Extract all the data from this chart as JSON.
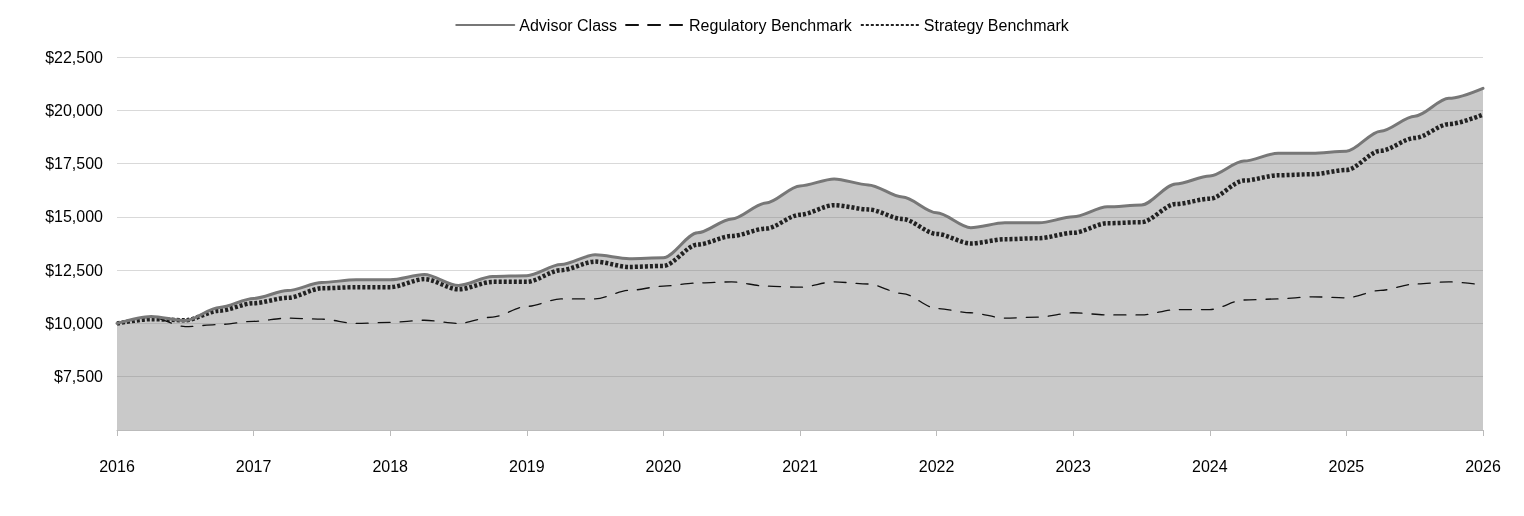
{
  "chart_data": {
    "type": "line",
    "x": [
      2016,
      2016.25,
      2016.5,
      2016.75,
      2017,
      2017.25,
      2017.5,
      2017.75,
      2018,
      2018.25,
      2018.5,
      2018.75,
      2019,
      2019.25,
      2019.5,
      2019.75,
      2020,
      2020.25,
      2020.5,
      2020.75,
      2021,
      2021.25,
      2021.5,
      2021.75,
      2022,
      2022.25,
      2022.5,
      2022.75,
      2023,
      2023.25,
      2023.5,
      2023.75,
      2024,
      2024.25,
      2024.5,
      2024.75,
      2025,
      2025.25,
      2025.5,
      2025.75,
      2026
    ],
    "series": [
      {
        "name": "Advisor Class",
        "type": "area",
        "color": "#777777",
        "line_style": "solid",
        "values": [
          10000,
          10330,
          10140,
          10750,
          11170,
          11540,
          11920,
          12050,
          12050,
          12290,
          11780,
          12200,
          12240,
          12760,
          13220,
          13040,
          13080,
          14250,
          14900,
          15650,
          16450,
          16780,
          16500,
          15930,
          15190,
          14490,
          14720,
          14720,
          15000,
          15470,
          15560,
          16540,
          16920,
          17620,
          17990,
          17990,
          18080,
          19020,
          19720,
          20560,
          21030
        ]
      },
      {
        "name": "Regulatory Benchmark",
        "color": "#111111",
        "line_style": "dashed",
        "values": [
          10000,
          10300,
          9850,
          9950,
          10100,
          10250,
          10200,
          10000,
          10050,
          10150,
          10000,
          10300,
          10800,
          11150,
          11150,
          11550,
          11750,
          11900,
          11950,
          11750,
          11700,
          11950,
          11850,
          11400,
          10700,
          10500,
          10250,
          10300,
          10500,
          10400,
          10400,
          10650,
          10650,
          11100,
          11150,
          11250,
          11200,
          11550,
          11850,
          11950,
          11800
        ]
      },
      {
        "name": "Strategy Benchmark",
        "color": "#222222",
        "line_style": "dotted",
        "values": [
          10000,
          10200,
          10150,
          10600,
          10950,
          11200,
          11650,
          11700,
          11700,
          12080,
          11600,
          11950,
          11950,
          12500,
          12900,
          12650,
          12700,
          13700,
          14100,
          14450,
          15100,
          15550,
          15350,
          14900,
          14200,
          13750,
          13950,
          14000,
          14250,
          14700,
          14750,
          15600,
          15850,
          16700,
          16950,
          17000,
          17200,
          18100,
          18700,
          19350,
          19800
        ]
      }
    ],
    "xlim": [
      2016,
      2026
    ],
    "xticks": [
      2016,
      2017,
      2018,
      2019,
      2020,
      2021,
      2022,
      2023,
      2024,
      2025,
      2026
    ],
    "ylim": [
      5000,
      22500
    ],
    "yticks": [
      {
        "value": 7500,
        "label": "$7,500"
      },
      {
        "value": 10000,
        "label": "$10,000"
      },
      {
        "value": 12500,
        "label": "$12,500"
      },
      {
        "value": 15000,
        "label": "$15,000"
      },
      {
        "value": 17500,
        "label": "$17,500"
      },
      {
        "value": 20000,
        "label": "$20,000"
      },
      {
        "value": 22500,
        "label": "$22,500"
      }
    ],
    "grid": "y",
    "legend": "top",
    "marker": "none"
  }
}
